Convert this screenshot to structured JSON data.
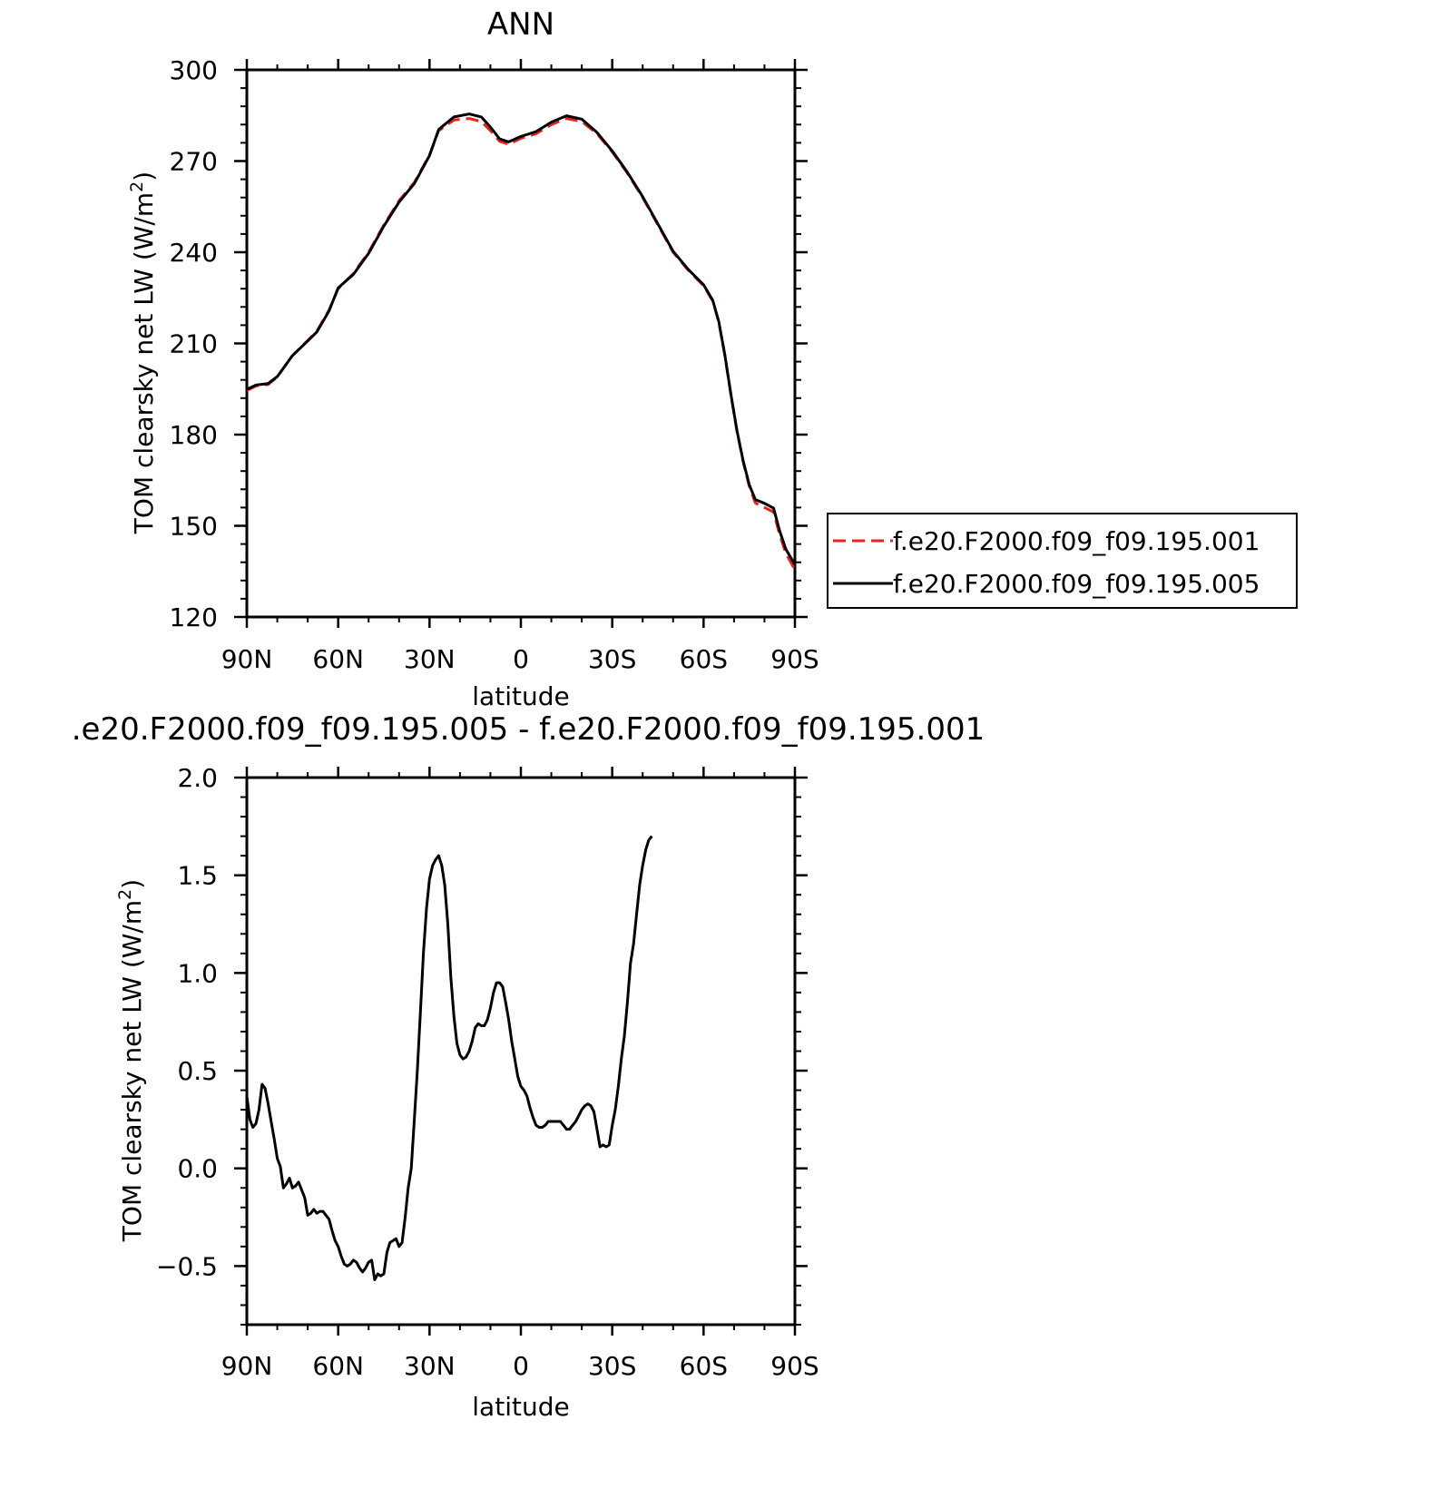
{
  "chart_data": [
    {
      "type": "line",
      "title": "ANN",
      "xlabel": "latitude",
      "ylabel": "TOM clearsky net LW (W/m²)",
      "ylabel_main": "TOM clearsky net LW (W/m",
      "ylabel_sup": "2",
      "ylabel_end": ")",
      "xlim": [
        90,
        -90
      ],
      "ylim": [
        120,
        300
      ],
      "x_ticks": [
        90,
        60,
        30,
        0,
        -30,
        -60,
        -90
      ],
      "x_tick_labels": [
        "90N",
        "60N",
        "30N",
        "0",
        "30S",
        "60S",
        "90S"
      ],
      "y_ticks": [
        120,
        150,
        180,
        210,
        240,
        270,
        300
      ],
      "y_tick_labels": [
        "120",
        "150",
        "180",
        "210",
        "240",
        "270",
        "300"
      ],
      "legend_position": "right",
      "series": [
        {
          "name": "f.e20.F2000.f09_f09.195.001",
          "color": "#e8241b",
          "style": "dashed",
          "points": [
            [
              90,
              194.5
            ],
            [
              87,
              196
            ],
            [
              83,
              196.5
            ],
            [
              80,
              199
            ],
            [
              75,
              206
            ],
            [
              70,
              211
            ],
            [
              67,
              214
            ],
            [
              63,
              221
            ],
            [
              60,
              228
            ],
            [
              55,
              233
            ],
            [
              50,
              240
            ],
            [
              45,
              249
            ],
            [
              40,
              257
            ],
            [
              35,
              263
            ],
            [
              30,
              272
            ],
            [
              27,
              280
            ],
            [
              22,
              283.5
            ],
            [
              17,
              284
            ],
            [
              13,
              283
            ],
            [
              10,
              280
            ],
            [
              7,
              276.5
            ],
            [
              4,
              275.5
            ],
            [
              0,
              277.5
            ],
            [
              -5,
              279
            ],
            [
              -10,
              282
            ],
            [
              -15,
              284
            ],
            [
              -20,
              283
            ],
            [
              -25,
              279
            ],
            [
              -30,
              273
            ],
            [
              -35,
              266
            ],
            [
              -40,
              258
            ],
            [
              -45,
              249
            ],
            [
              -50,
              240
            ],
            [
              -55,
              234
            ],
            [
              -60,
              229
            ],
            [
              -63,
              224
            ],
            [
              -65,
              217
            ],
            [
              -67,
              206
            ],
            [
              -69,
              193
            ],
            [
              -71,
              181
            ],
            [
              -73,
              171
            ],
            [
              -75,
              163
            ],
            [
              -77,
              157.5
            ],
            [
              -80,
              156
            ],
            [
              -83,
              154.5
            ],
            [
              -85,
              147
            ],
            [
              -87,
              141
            ],
            [
              -90,
              135.5
            ]
          ]
        },
        {
          "name": "f.e20.F2000.f09_f09.195.005",
          "color": "#000000",
          "style": "solid",
          "points": [
            [
              90,
              194.9
            ],
            [
              87,
              196.3
            ],
            [
              83,
              196.8
            ],
            [
              80,
              199.1
            ],
            [
              75,
              206
            ],
            [
              70,
              210.8
            ],
            [
              67,
              213.8
            ],
            [
              63,
              220.7
            ],
            [
              60,
              228.3
            ],
            [
              55,
              232.7
            ],
            [
              50,
              239.6
            ],
            [
              45,
              248.6
            ],
            [
              40,
              256.5
            ],
            [
              35,
              262.6
            ],
            [
              30,
              271.8
            ],
            [
              27,
              280.4
            ],
            [
              22,
              284.5
            ],
            [
              17,
              285.5
            ],
            [
              13,
              284.5
            ],
            [
              10,
              281.2
            ],
            [
              7,
              277.3
            ],
            [
              4,
              276.3
            ],
            [
              0,
              278.1
            ],
            [
              -5,
              279.7
            ],
            [
              -10,
              282.8
            ],
            [
              -15,
              284.9
            ],
            [
              -20,
              283.8
            ],
            [
              -25,
              279.4
            ],
            [
              -30,
              273.3
            ],
            [
              -35,
              266.3
            ],
            [
              -40,
              258.3
            ],
            [
              -45,
              249.3
            ],
            [
              -50,
              240.3
            ],
            [
              -55,
              234.3
            ],
            [
              -60,
              229.3
            ],
            [
              -63,
              224.2
            ],
            [
              -65,
              217.2
            ],
            [
              -67,
              206.2
            ],
            [
              -69,
              193.2
            ],
            [
              -71,
              181.2
            ],
            [
              -73,
              171.3
            ],
            [
              -75,
              163.5
            ],
            [
              -77,
              158.6
            ],
            [
              -80,
              157.4
            ],
            [
              -83,
              155.8
            ],
            [
              -85,
              148.3
            ],
            [
              -87,
              142.4
            ],
            [
              -90,
              137.2
            ]
          ]
        }
      ]
    },
    {
      "type": "line",
      "title": ".e20.F2000.f09_f09.195.005 - f.e20.F2000.f09_f09.195.001",
      "xlabel": "latitude",
      "ylabel": "TOM clearsky net LW (W/m²)",
      "ylabel_main": "TOM clearsky net LW (W/m",
      "ylabel_sup": "2",
      "ylabel_end": ")",
      "xlim": [
        90,
        -90
      ],
      "ylim": [
        -0.8,
        2.0
      ],
      "x_ticks": [
        90,
        60,
        30,
        0,
        -30,
        -60,
        -90
      ],
      "x_tick_labels": [
        "90N",
        "60N",
        "30N",
        "0",
        "30S",
        "60S",
        "90S"
      ],
      "y_ticks": [
        -0.5,
        0.0,
        0.5,
        1.0,
        1.5,
        2.0
      ],
      "y_tick_labels": [
        "−0.5",
        "0.0",
        "0.5",
        "1.0",
        "1.5",
        "2.0"
      ],
      "series": [
        {
          "color": "#000000",
          "style": "solid",
          "points": [
            [
              90,
              0.37
            ],
            [
              89,
              0.25
            ],
            [
              88,
              0.21
            ],
            [
              87,
              0.23
            ],
            [
              86,
              0.3
            ],
            [
              85,
              0.43
            ],
            [
              84,
              0.41
            ],
            [
              83,
              0.33
            ],
            [
              82,
              0.24
            ],
            [
              81,
              0.15
            ],
            [
              80,
              0.05
            ],
            [
              79,
              0.01
            ],
            [
              78,
              -0.1
            ],
            [
              77,
              -0.08
            ],
            [
              76,
              -0.05
            ],
            [
              75,
              -0.1
            ],
            [
              74,
              -0.09
            ],
            [
              73,
              -0.07
            ],
            [
              72,
              -0.11
            ],
            [
              71,
              -0.15
            ],
            [
              70,
              -0.24
            ],
            [
              69,
              -0.23
            ],
            [
              68,
              -0.21
            ],
            [
              67,
              -0.23
            ],
            [
              66,
              -0.22
            ],
            [
              65,
              -0.22
            ],
            [
              64,
              -0.24
            ],
            [
              63,
              -0.26
            ],
            [
              62,
              -0.32
            ],
            [
              61,
              -0.37
            ],
            [
              60,
              -0.4
            ],
            [
              59,
              -0.45
            ],
            [
              58,
              -0.49
            ],
            [
              57,
              -0.5
            ],
            [
              56,
              -0.49
            ],
            [
              55,
              -0.47
            ],
            [
              54,
              -0.48
            ],
            [
              53,
              -0.51
            ],
            [
              52,
              -0.53
            ],
            [
              51,
              -0.51
            ],
            [
              50,
              -0.48
            ],
            [
              49,
              -0.47
            ],
            [
              48,
              -0.57
            ],
            [
              47,
              -0.54
            ],
            [
              46,
              -0.55
            ],
            [
              45,
              -0.54
            ],
            [
              44,
              -0.43
            ],
            [
              43,
              -0.38
            ],
            [
              42,
              -0.37
            ],
            [
              41,
              -0.36
            ],
            [
              40,
              -0.4
            ],
            [
              39,
              -0.38
            ],
            [
              38,
              -0.25
            ],
            [
              37,
              -0.1
            ],
            [
              36,
              0.0
            ],
            [
              35,
              0.25
            ],
            [
              34,
              0.5
            ],
            [
              33,
              0.8
            ],
            [
              32,
              1.1
            ],
            [
              31,
              1.33
            ],
            [
              30,
              1.48
            ],
            [
              29,
              1.55
            ],
            [
              28,
              1.58
            ],
            [
              27,
              1.6
            ],
            [
              26,
              1.55
            ],
            [
              25,
              1.45
            ],
            [
              24,
              1.25
            ],
            [
              23,
              0.98
            ],
            [
              22,
              0.78
            ],
            [
              21,
              0.64
            ],
            [
              20,
              0.58
            ],
            [
              19,
              0.56
            ],
            [
              18,
              0.57
            ],
            [
              17,
              0.6
            ],
            [
              16,
              0.65
            ],
            [
              15,
              0.72
            ],
            [
              14,
              0.74
            ],
            [
              13,
              0.73
            ],
            [
              12,
              0.73
            ],
            [
              11,
              0.76
            ],
            [
              10,
              0.82
            ],
            [
              9,
              0.9
            ],
            [
              8,
              0.95
            ],
            [
              7,
              0.95
            ],
            [
              6,
              0.93
            ],
            [
              5,
              0.85
            ],
            [
              4,
              0.76
            ],
            [
              3,
              0.65
            ],
            [
              2,
              0.56
            ],
            [
              1,
              0.47
            ],
            [
              0,
              0.42
            ],
            [
              -1,
              0.4
            ],
            [
              -2,
              0.37
            ],
            [
              -3,
              0.31
            ],
            [
              -4,
              0.26
            ],
            [
              -5,
              0.22
            ],
            [
              -6,
              0.21
            ],
            [
              -7,
              0.21
            ],
            [
              -8,
              0.22
            ],
            [
              -9,
              0.24
            ],
            [
              -10,
              0.24
            ],
            [
              -11,
              0.24
            ],
            [
              -12,
              0.24
            ],
            [
              -13,
              0.24
            ],
            [
              -14,
              0.22
            ],
            [
              -15,
              0.2
            ],
            [
              -16,
              0.2
            ],
            [
              -17,
              0.22
            ],
            [
              -18,
              0.24
            ],
            [
              -19,
              0.27
            ],
            [
              -20,
              0.3
            ],
            [
              -21,
              0.32
            ],
            [
              -22,
              0.33
            ],
            [
              -23,
              0.32
            ],
            [
              -24,
              0.29
            ],
            [
              -25,
              0.2
            ],
            [
              -26,
              0.11
            ],
            [
              -27,
              0.12
            ],
            [
              -28,
              0.11
            ],
            [
              -29,
              0.12
            ],
            [
              -30,
              0.22
            ],
            [
              -31,
              0.3
            ],
            [
              -32,
              0.42
            ],
            [
              -33,
              0.56
            ],
            [
              -34,
              0.68
            ],
            [
              -35,
              0.85
            ],
            [
              -36,
              1.05
            ],
            [
              -37,
              1.15
            ],
            [
              -38,
              1.3
            ],
            [
              -39,
              1.45
            ],
            [
              -40,
              1.55
            ],
            [
              -41,
              1.63
            ],
            [
              -42,
              1.68
            ],
            [
              -43,
              1.7
            ]
          ]
        }
      ]
    }
  ]
}
